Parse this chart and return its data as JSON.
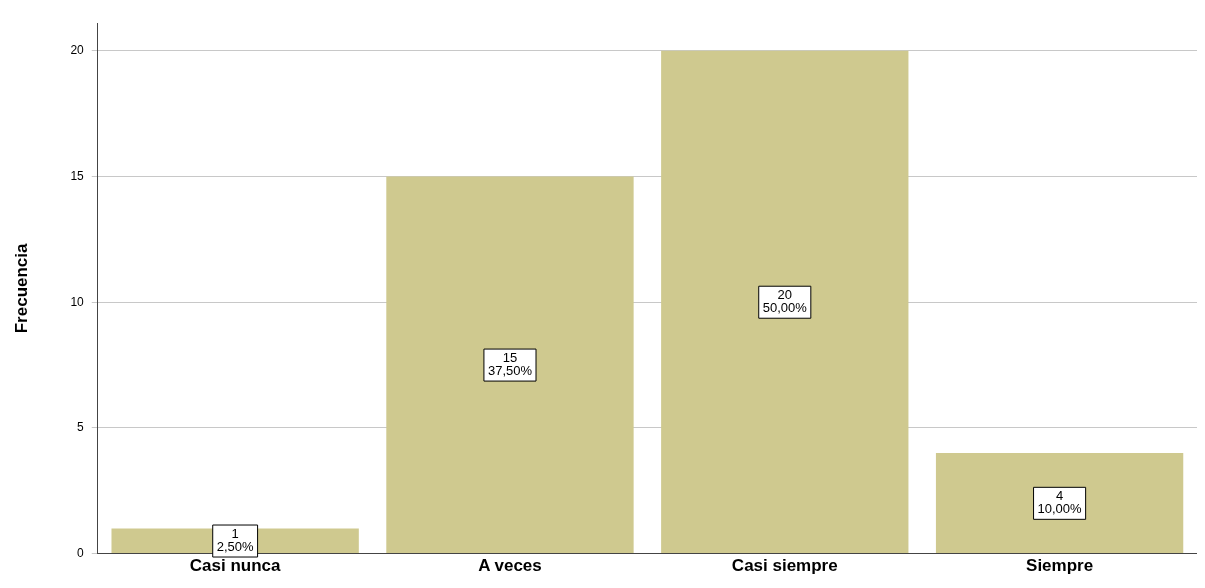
{
  "chart_data": {
    "type": "bar",
    "ylabel": "Frecuencia",
    "categories": [
      "Casi nunca",
      "A veces",
      "Casi siempre",
      "Siempre"
    ],
    "values": [
      1,
      15,
      20,
      4
    ],
    "value_labels": [
      "1\n2,50%",
      "15\n37,50%",
      "20\n50,00%",
      "4\n10,00%"
    ],
    "color": "#cfc98f",
    "ylim": [
      0,
      21.1
    ],
    "yticks": [
      0,
      5,
      10,
      15,
      20
    ],
    "grid": "y",
    "legend": false
  }
}
